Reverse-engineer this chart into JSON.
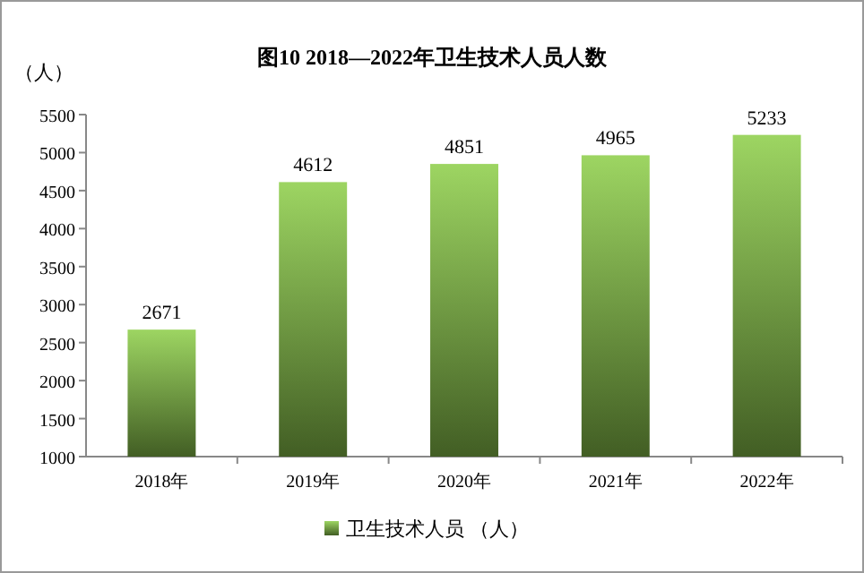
{
  "chart_data": {
    "type": "bar",
    "title": "图10  2018—2022年卫生技术人员人数",
    "ylabel": "（人）",
    "categories": [
      "2018年",
      "2019年",
      "2020年",
      "2021年",
      "2022年"
    ],
    "series": [
      {
        "name": "卫生技术人员  （人）",
        "color": "#92d050",
        "values": [
          2671,
          4612,
          4851,
          4965,
          5233
        ]
      }
    ],
    "ylim": [
      1000,
      5500
    ],
    "yticks": [
      1000,
      1500,
      2000,
      2500,
      3000,
      3500,
      4000,
      4500,
      5000,
      5500
    ],
    "data_labels": true,
    "legend": "bottom"
  }
}
